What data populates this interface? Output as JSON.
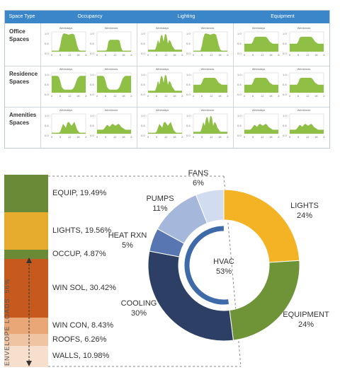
{
  "grid": {
    "header": {
      "type_label": "Space Type",
      "col1": "Occupancy",
      "col2": "Lighting",
      "col3": "Equipment"
    },
    "rows": [
      {
        "label": "Office Spaces"
      },
      {
        "label": "Residence Spaces"
      },
      {
        "label": "Amenities Spaces"
      }
    ],
    "mini_titles": {
      "a": "Weekdays",
      "b": "Weekends"
    },
    "y_ticks": [
      "1.0",
      "0.5",
      "0.0"
    ],
    "x_ticks": [
      "0",
      "6",
      "12",
      "18",
      "24"
    ]
  },
  "chart_data": [
    {
      "type": "bar",
      "title": "",
      "stacked": true,
      "categories": [
        "EQUIP",
        "LIGHTS",
        "OCCUP",
        "WIN SOL",
        "WIN CON",
        "ROOFS",
        "WALLS"
      ],
      "values": [
        19.49,
        19.56,
        4.87,
        30.42,
        8.43,
        6.26,
        10.98
      ],
      "labels": [
        "EQUIP, 19.49%",
        "LIGHTS, 19.56%",
        "OCCUP, 4.87%",
        "WIN SOL, 30.42%",
        "WIN CON, 8.43%",
        "ROOFS, 6.26%",
        "WALLS, 10.98%"
      ],
      "colors": [
        "#6a8a37",
        "#e5ac2e",
        "#6a8a37",
        "#c65a1e",
        "#e9a777",
        "#efc4a3",
        "#f6e0cd"
      ],
      "annotation": "ENVELOPE LOADS: 56%"
    },
    {
      "type": "pie",
      "title": "",
      "slices": [
        {
          "label": "LIGHTS",
          "value": 24,
          "text": "24%",
          "color": "#f3b325"
        },
        {
          "label": "EQUIPMENT",
          "value": 24,
          "text": "24%",
          "color": "#6f9438"
        },
        {
          "label": "COOLING",
          "value": 30,
          "text": "30%",
          "color": "#2d3f64"
        },
        {
          "label": "HEAT RXN",
          "value": 5,
          "text": "5%",
          "color": "#5776b2"
        },
        {
          "label": "PUMPS",
          "value": 11,
          "text": "11%",
          "color": "#a5b8dc"
        },
        {
          "label": "FANS",
          "value": 6,
          "text": "6%",
          "color": "#d2dcf0"
        }
      ],
      "center_label": "HVAC",
      "center_value": "53%",
      "inner_ring_color": "#3e6aa8"
    }
  ]
}
